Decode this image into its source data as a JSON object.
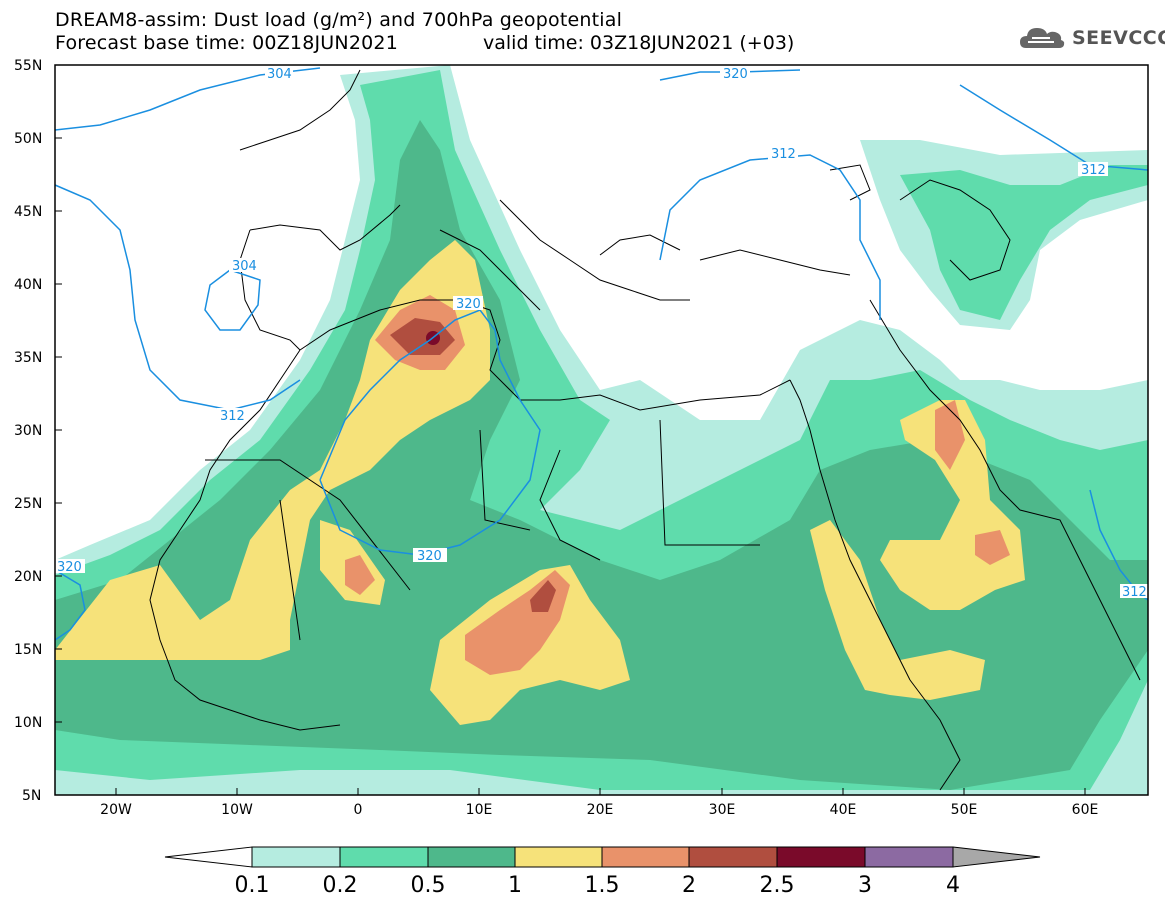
{
  "title": {
    "line1": "DREAM8-assim: Dust load (g/m²) and 700hPa geopotential",
    "line2": "Forecast base time: 00Z18JUN2021",
    "valid": "valid time: 03Z18JUN2021 (+03)"
  },
  "logo": {
    "text": "SEEVCCC",
    "icon": "cloud-logo-icon"
  },
  "axes": {
    "lat_labels": [
      "55N",
      "50N",
      "45N",
      "40N",
      "35N",
      "30N",
      "25N",
      "20N",
      "15N",
      "10N",
      "5N"
    ],
    "lon_labels": [
      "20W",
      "10W",
      "0",
      "10E",
      "20E",
      "30E",
      "40E",
      "50E",
      "60E"
    ]
  },
  "contour_labels": [
    "304",
    "320",
    "312",
    "304",
    "320",
    "312",
    "320",
    "320",
    "312",
    "312"
  ],
  "colorbar": {
    "ticks": [
      "0.1",
      "0.2",
      "0.5",
      "1",
      "1.5",
      "2",
      "2.5",
      "3",
      "4"
    ],
    "colors": [
      "#ffffff",
      "#b5ece0",
      "#5fdcac",
      "#4eb88b",
      "#f6e27a",
      "#e9926a",
      "#b04e3f",
      "#7a0a2a",
      "#8c6aa2",
      "#a8a8a8"
    ]
  },
  "colors": {
    "land_outline": "#000000",
    "contour": "#1a8fe0",
    "level_0_1": "#b5ece0",
    "level_0_2": "#5fdcac",
    "level_0_5": "#4eb88b",
    "level_1": "#f6e27a",
    "level_1_5": "#e9926a",
    "level_2": "#b04e3f",
    "level_2_5": "#7a0a2a"
  }
}
